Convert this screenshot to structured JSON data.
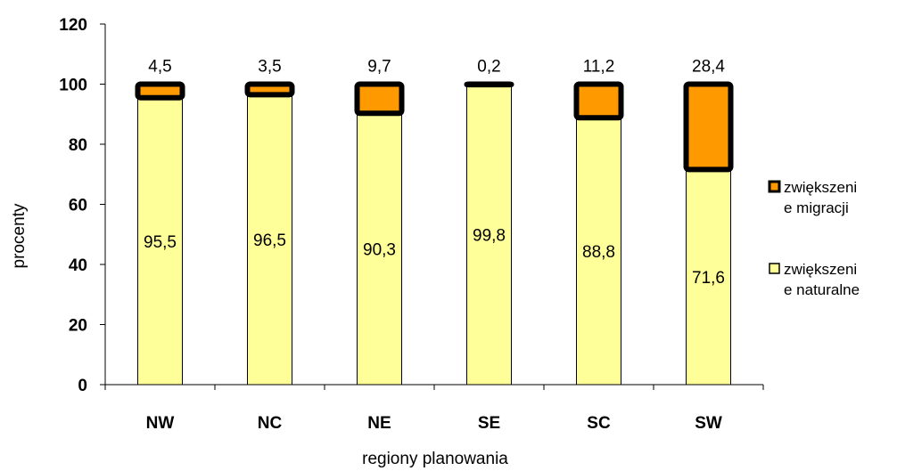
{
  "chart_data": {
    "type": "bar",
    "stacked": true,
    "categories": [
      "NW",
      "NC",
      "NE",
      "SE",
      "SC",
      "SW"
    ],
    "series": [
      {
        "name": "zwiększenie naturalne",
        "legend_lines": [
          "zwiększeni",
          "e naturalne"
        ],
        "values": [
          95.5,
          96.5,
          90.3,
          99.8,
          88.8,
          71.6
        ],
        "labels": [
          "95,5",
          "96,5",
          "90,3",
          "99,8",
          "88,8",
          "71,6"
        ],
        "color": "#ffff99"
      },
      {
        "name": "zwiększenie migracji",
        "legend_lines": [
          "zwiększeni",
          "e migracji"
        ],
        "values": [
          4.5,
          3.5,
          9.7,
          0.2,
          11.2,
          28.4
        ],
        "labels": [
          "4,5",
          "3,5",
          "9,7",
          "0,2",
          "11,2",
          "28,4"
        ],
        "color": "#ff9900"
      }
    ],
    "xlabel": "regiony planowania",
    "ylabel": "procenty",
    "ylim": [
      0,
      120
    ],
    "yticks": [
      0,
      20,
      40,
      60,
      80,
      100,
      120
    ],
    "grid": false,
    "legend_position": "right"
  }
}
